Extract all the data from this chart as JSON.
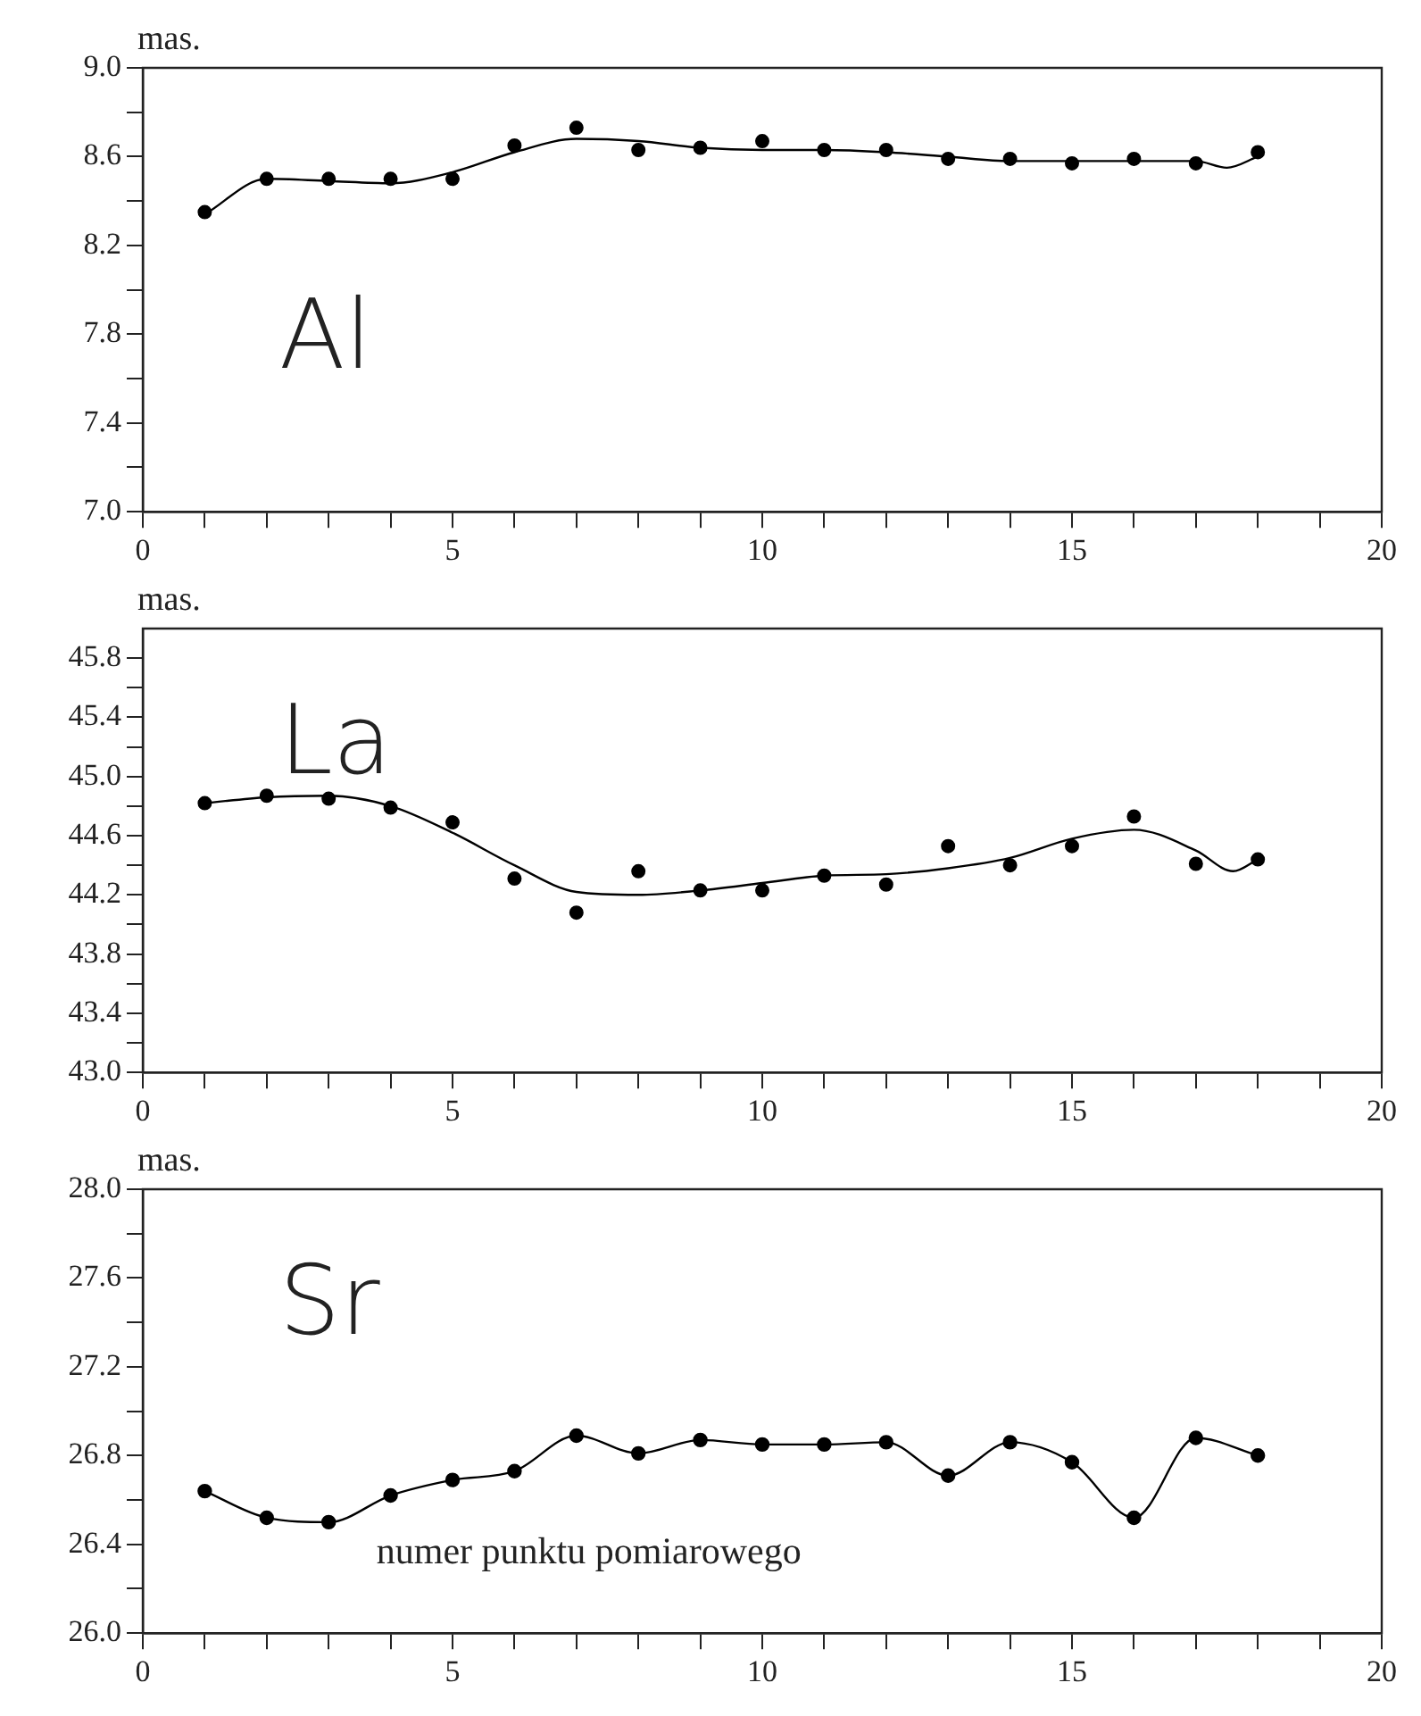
{
  "chart_data": [
    {
      "type": "scatter",
      "ylabel": "mas.",
      "annotations": [
        "Al"
      ],
      "grid": false,
      "legend": false,
      "xlim": [
        0,
        20
      ],
      "xticks": [
        0,
        {
          "value": 1,
          "label": null
        },
        {
          "value": 2,
          "label": null
        },
        {
          "value": 3,
          "label": null
        },
        {
          "value": 4,
          "label": null
        },
        5,
        {
          "value": 6,
          "label": null
        },
        {
          "value": 7,
          "label": null
        },
        {
          "value": 8,
          "label": null
        },
        {
          "value": 9,
          "label": null
        },
        10,
        {
          "value": 11,
          "label": null
        },
        {
          "value": 12,
          "label": null
        },
        {
          "value": 13,
          "label": null
        },
        {
          "value": 14,
          "label": null
        },
        15,
        {
          "value": 16,
          "label": null
        },
        {
          "value": 17,
          "label": null
        },
        {
          "value": 18,
          "label": null
        },
        {
          "value": 19,
          "label": null
        },
        20
      ],
      "ylim": [
        7,
        9
      ],
      "yticks": [
        {
          "value": 7,
          "label": "7.0"
        },
        {
          "value": 7.2,
          "label": null
        },
        7.4,
        {
          "value": 7.6,
          "label": null
        },
        7.8,
        {
          "value": 8,
          "label": null
        },
        8.2,
        {
          "value": 8.4,
          "label": null
        },
        8.6,
        {
          "value": 8.8,
          "label": null
        },
        {
          "value": 9,
          "label": "9.0"
        }
      ],
      "series": [
        {
          "marker": "circle",
          "color": "#000000",
          "x": [
            1,
            2,
            3,
            4,
            5,
            6,
            7,
            8,
            9,
            10,
            11,
            12,
            13,
            14,
            15,
            16,
            17,
            18
          ],
          "values": [
            8.35,
            8.5,
            8.5,
            8.5,
            8.5,
            8.65,
            8.73,
            8.63,
            8.64,
            8.67,
            8.63,
            8.63,
            8.59,
            8.59,
            8.57,
            8.59,
            8.57,
            8.62
          ]
        },
        {
          "type": "line",
          "color": "#000000",
          "x": [
            1,
            2,
            3,
            4,
            5,
            6,
            7,
            8,
            9,
            10,
            11,
            12,
            13,
            14,
            15,
            16,
            17,
            17.5,
            18
          ],
          "values": [
            8.34,
            8.5,
            8.49,
            8.48,
            8.53,
            8.62,
            8.68,
            8.67,
            8.64,
            8.63,
            8.63,
            8.62,
            8.6,
            8.58,
            8.58,
            8.58,
            8.58,
            8.55,
            8.6
          ]
        }
      ]
    },
    {
      "type": "scatter",
      "ylabel": "mas.",
      "annotations": [
        "La"
      ],
      "grid": false,
      "legend": false,
      "xlim": [
        0,
        20
      ],
      "xticks": [
        0,
        {
          "value": 1,
          "label": null
        },
        {
          "value": 2,
          "label": null
        },
        {
          "value": 3,
          "label": null
        },
        {
          "value": 4,
          "label": null
        },
        5,
        {
          "value": 6,
          "label": null
        },
        {
          "value": 7,
          "label": null
        },
        {
          "value": 8,
          "label": null
        },
        {
          "value": 9,
          "label": null
        },
        10,
        {
          "value": 11,
          "label": null
        },
        {
          "value": 12,
          "label": null
        },
        {
          "value": 13,
          "label": null
        },
        {
          "value": 14,
          "label": null
        },
        15,
        {
          "value": 16,
          "label": null
        },
        {
          "value": 17,
          "label": null
        },
        {
          "value": 18,
          "label": null
        },
        {
          "value": 19,
          "label": null
        },
        20
      ],
      "ylim": [
        43,
        46
      ],
      "yticks": [
        {
          "value": 43,
          "label": "43.0"
        },
        {
          "value": 43.2,
          "label": null
        },
        43.4,
        {
          "value": 43.6,
          "label": null
        },
        43.8,
        {
          "value": 44,
          "label": null
        },
        44.2,
        {
          "value": 44.4,
          "label": null
        },
        44.6,
        {
          "value": 44.8,
          "label": null
        },
        {
          "value": 45,
          "label": "45.0"
        },
        {
          "value": 45.2,
          "label": null
        },
        45.4,
        {
          "value": 45.6,
          "label": null
        },
        45.8
      ],
      "series": [
        {
          "marker": "circle",
          "color": "#000000",
          "x": [
            1,
            2,
            3,
            4,
            5,
            6,
            7,
            8,
            9,
            10,
            11,
            12,
            13,
            14,
            15,
            16,
            17,
            18
          ],
          "values": [
            44.82,
            44.87,
            44.85,
            44.79,
            44.69,
            44.31,
            44.08,
            44.36,
            44.23,
            44.23,
            44.33,
            44.27,
            44.53,
            44.4,
            44.53,
            44.73,
            44.41,
            44.44
          ]
        },
        {
          "type": "line",
          "color": "#000000",
          "x": [
            1,
            2,
            3,
            4,
            5,
            6,
            7,
            8,
            9,
            10,
            11,
            12,
            13,
            14,
            15,
            16,
            17,
            17.6,
            18
          ],
          "values": [
            44.82,
            44.86,
            44.87,
            44.8,
            44.62,
            44.4,
            44.22,
            44.2,
            44.23,
            44.28,
            44.33,
            44.34,
            44.38,
            44.45,
            44.58,
            44.64,
            44.5,
            44.36,
            44.44
          ]
        }
      ]
    },
    {
      "type": "line",
      "ylabel": "mas.",
      "xlabel": "numer punktu pomiarowego",
      "annotations": [
        "Sr"
      ],
      "grid": false,
      "legend": false,
      "xlim": [
        0,
        20
      ],
      "xticks": [
        0,
        {
          "value": 1,
          "label": null
        },
        {
          "value": 2,
          "label": null
        },
        {
          "value": 3,
          "label": null
        },
        {
          "value": 4,
          "label": null
        },
        5,
        {
          "value": 6,
          "label": null
        },
        {
          "value": 7,
          "label": null
        },
        {
          "value": 8,
          "label": null
        },
        {
          "value": 9,
          "label": null
        },
        10,
        {
          "value": 11,
          "label": null
        },
        {
          "value": 12,
          "label": null
        },
        {
          "value": 13,
          "label": null
        },
        {
          "value": 14,
          "label": null
        },
        15,
        {
          "value": 16,
          "label": null
        },
        {
          "value": 17,
          "label": null
        },
        {
          "value": 18,
          "label": null
        },
        {
          "value": 19,
          "label": null
        },
        20
      ],
      "ylim": [
        26,
        28
      ],
      "yticks": [
        {
          "value": 26,
          "label": "26.0"
        },
        {
          "value": 26.2,
          "label": null
        },
        26.4,
        {
          "value": 26.6,
          "label": null
        },
        26.8,
        {
          "value": 27,
          "label": null
        },
        27.2,
        {
          "value": 27.4,
          "label": null
        },
        27.6,
        {
          "value": 27.8,
          "label": null
        },
        {
          "value": 28,
          "label": "28.0"
        }
      ],
      "series": [
        {
          "marker": "circle",
          "color": "#000000",
          "x": [
            1,
            2,
            3,
            4,
            5,
            6,
            7,
            8,
            9,
            10,
            11,
            12,
            13,
            14,
            15,
            16,
            17,
            18
          ],
          "values": [
            26.64,
            26.52,
            26.5,
            26.62,
            26.69,
            26.73,
            26.89,
            26.81,
            26.87,
            26.85,
            26.85,
            26.86,
            26.71,
            26.86,
            26.77,
            26.52,
            26.88,
            26.8
          ]
        }
      ]
    }
  ]
}
